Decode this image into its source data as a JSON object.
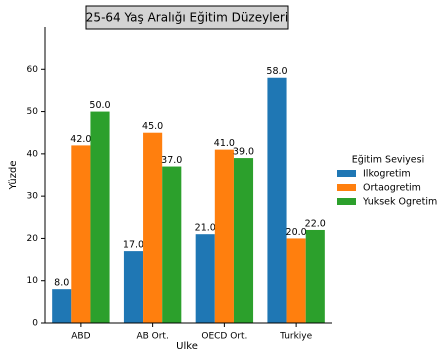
{
  "chart_data": {
    "type": "bar",
    "title": "25-64 Yaş Aralığı Eğitim Düzeyleri",
    "xlabel": "Ulke",
    "ylabel": "Yüzde",
    "categories": [
      "ABD",
      "AB Ort.",
      "OECD Ort.",
      "Turkiye"
    ],
    "series": [
      {
        "name": "Ilkogretim",
        "color": "#1f77b4",
        "values": [
          8,
          17,
          21,
          58
        ],
        "value_labels": [
          "8.0",
          "17.0",
          "21.0",
          "58.0"
        ]
      },
      {
        "name": "Ortaogretim",
        "color": "#ff7f0e",
        "values": [
          42,
          45,
          41,
          20
        ],
        "value_labels": [
          "42.0",
          "45.0",
          "41.0",
          "20.0"
        ]
      },
      {
        "name": "Yuksek Ogretim",
        "color": "#2ca02c",
        "values": [
          50,
          37,
          39,
          22
        ],
        "value_labels": [
          "50.0",
          "37.0",
          "39.0",
          "22.0"
        ]
      }
    ],
    "legend_title": "Eğitim Seviyesi",
    "legend": "right",
    "ylim": [
      0,
      70
    ],
    "yticks": [
      0,
      10,
      20,
      30,
      40,
      50,
      60
    ],
    "grid": false
  }
}
